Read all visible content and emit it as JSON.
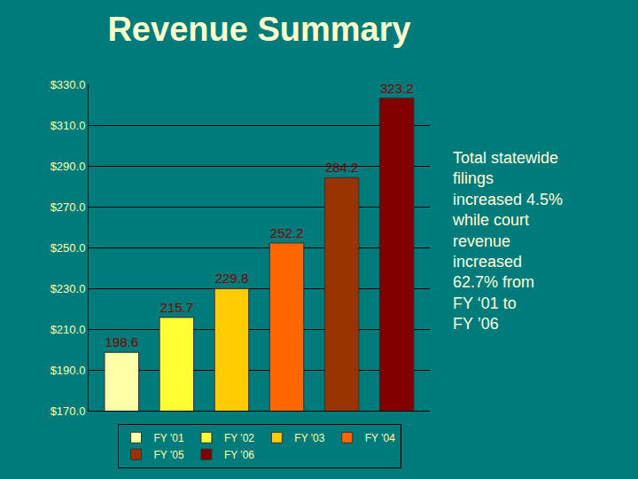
{
  "chart_data": {
    "type": "bar",
    "title": "Revenue Summary",
    "categories": [
      "FY '01",
      "FY '02",
      "FY '03",
      "FY '04",
      "FY '05",
      "FY '06"
    ],
    "values": [
      198.6,
      215.7,
      229.8,
      252.2,
      284.2,
      323.2
    ],
    "colors": [
      "#ffffa8",
      "#ffff33",
      "#ffcc00",
      "#ff6600",
      "#993300",
      "#800000"
    ],
    "ylim": [
      170,
      330
    ],
    "yticks": [
      {
        "value": 170,
        "label": "$170.0"
      },
      {
        "value": 190,
        "label": "$190.0"
      },
      {
        "value": 210,
        "label": "$210.0"
      },
      {
        "value": 230,
        "label": "$230.0"
      },
      {
        "value": 250,
        "label": "$250.0"
      },
      {
        "value": 270,
        "label": "$270.0"
      },
      {
        "value": 290,
        "label": "$290.0"
      },
      {
        "value": 310,
        "label": "$310.0"
      },
      {
        "value": 330,
        "label": "$330.0"
      }
    ],
    "grid": true,
    "data_labels": true,
    "legend": "bottom",
    "tick_labels": "y",
    "annotations": [
      {
        "text": "Total statewide\nfilings\nincreased 4.5%\nwhile court\nrevenue\nincreased\n62.7% from\nFY ‘01 to\nFY ’06"
      }
    ]
  }
}
